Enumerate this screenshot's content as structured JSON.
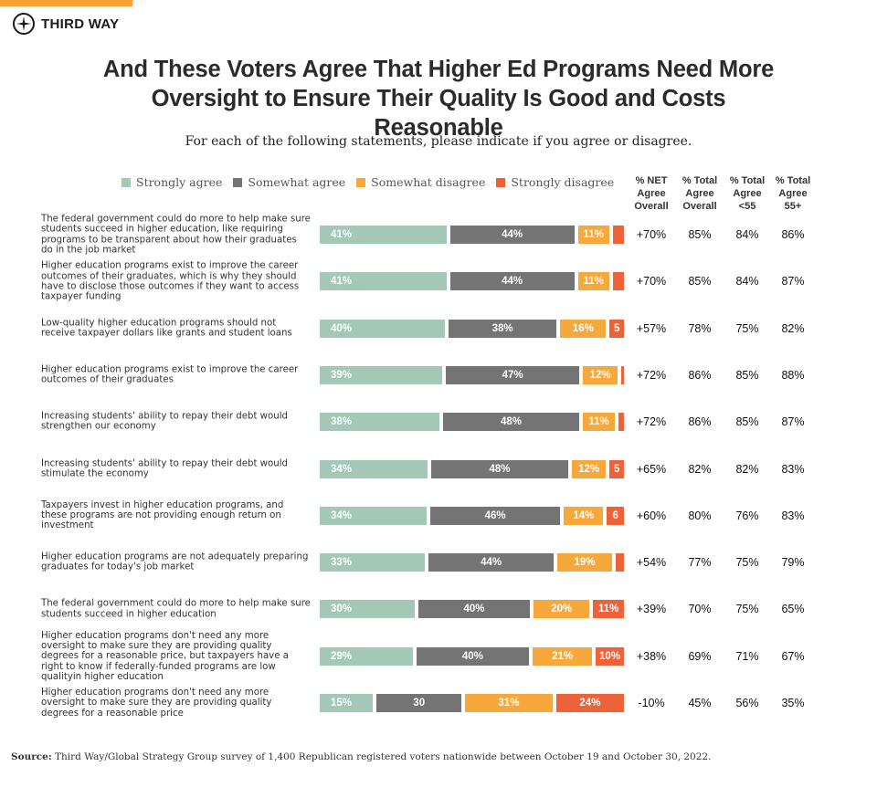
{
  "brand": {
    "name": "THIRD WAY",
    "accent": "#f7a233"
  },
  "chart_data": {
    "type": "bar",
    "stacked": true,
    "title": "And These Voters Agree That Higher Ed Programs Need More Oversight to Ensure Their Quality Is Good and Costs Reasonable",
    "subtitle": "For each of the following statements, please indicate if you agree or disagree.",
    "legend_position": "top",
    "series": [
      {
        "name": "Strongly agree",
        "color": "#a3c9b6"
      },
      {
        "name": "Somewhat agree",
        "color": "#747474"
      },
      {
        "name": "Somewhat disagree",
        "color": "#f7a83a"
      },
      {
        "name": "Strongly disagree",
        "color": "#ee6239"
      }
    ],
    "columns": [
      "% NET Agree Overall",
      "% Total Agree Overall",
      "% Total Agree <55",
      "% Total Agree 55+"
    ],
    "rows": [
      {
        "statement": "The federal government could do more to help make sure students succeed in higher education, like requiring programs to be transparent about how their graduates do in the job market",
        "values": [
          41,
          44,
          11,
          4
        ],
        "labels": [
          "41%",
          "44%",
          "11%",
          ""
        ],
        "stats": [
          "+70%",
          "85%",
          "84%",
          "86%"
        ]
      },
      {
        "statement": "Higher education programs exist to improve the career outcomes of their graduates, which is why they should have to disclose those outcomes if they want to access taxpayer funding",
        "values": [
          41,
          44,
          11,
          4
        ],
        "labels": [
          "41%",
          "44%",
          "11%",
          ""
        ],
        "stats": [
          "+70%",
          "85%",
          "84%",
          "87%"
        ]
      },
      {
        "statement": "Low-quality higher education programs should not receive taxpayer dollars like grants and student loans",
        "values": [
          40,
          38,
          16,
          5
        ],
        "labels": [
          "40%",
          "38%",
          "16%",
          "5"
        ],
        "stats": [
          "+57%",
          "78%",
          "75%",
          "82%"
        ]
      },
      {
        "statement": "Higher education programs exist to improve the career outcomes of their graduates",
        "values": [
          39,
          47,
          12,
          1
        ],
        "labels": [
          "39%",
          "47%",
          "12%",
          ""
        ],
        "stats": [
          "+72%",
          "86%",
          "85%",
          "88%"
        ]
      },
      {
        "statement": "Increasing students' ability to repay their debt would strengthen our economy",
        "values": [
          38,
          48,
          11,
          2
        ],
        "labels": [
          "38%",
          "48%",
          "11%",
          ""
        ],
        "stats": [
          "+72%",
          "86%",
          "85%",
          "87%"
        ]
      },
      {
        "statement": "Increasing students' ability to repay their debt would stimulate the economy",
        "values": [
          34,
          48,
          12,
          5
        ],
        "labels": [
          "34%",
          "48%",
          "12%",
          "5"
        ],
        "stats": [
          "+65%",
          "82%",
          "82%",
          "83%"
        ]
      },
      {
        "statement": "Taxpayers invest in higher education programs, and these programs are not providing enough return on investment",
        "values": [
          34,
          46,
          14,
          6
        ],
        "labels": [
          "34%",
          "46%",
          "14%",
          "6"
        ],
        "stats": [
          "+60%",
          "80%",
          "76%",
          "83%"
        ]
      },
      {
        "statement": "Higher education programs are not adequately preparing graduates for today's job market",
        "values": [
          33,
          44,
          19,
          3
        ],
        "labels": [
          "33%",
          "44%",
          "19%",
          ""
        ],
        "stats": [
          "+54%",
          "77%",
          "75%",
          "79%"
        ]
      },
      {
        "statement": "The federal government could do more to help make sure students succeed in higher education",
        "values": [
          30,
          40,
          20,
          11
        ],
        "labels": [
          "30%",
          "40%",
          "20%",
          "11%"
        ],
        "stats": [
          "+39%",
          "70%",
          "75%",
          "65%"
        ]
      },
      {
        "statement": "Higher education programs don't need any more oversight to make sure they are providing quality degrees for a reasonable price, but taxpayers have a right to know if federally-funded programs are low qualityin higher education",
        "values": [
          29,
          40,
          21,
          10
        ],
        "labels": [
          "29%",
          "40%",
          "21%",
          "10%"
        ],
        "stats": [
          "+38%",
          "69%",
          "71%",
          "67%"
        ]
      },
      {
        "statement": "Higher education programs don't need any more oversight to make sure they are providing quality degrees for a reasonable price",
        "values": [
          15,
          30,
          31,
          24
        ],
        "labels": [
          "15%",
          "30",
          "31%",
          "24%"
        ],
        "stats": [
          "-10%",
          "45%",
          "56%",
          "35%"
        ]
      }
    ]
  },
  "source": {
    "label": "Source:",
    "text": " Third Way/Global Strategy Group survey of 1,400 Republican registered voters nationwide between October 19 and October 30, 2022."
  }
}
